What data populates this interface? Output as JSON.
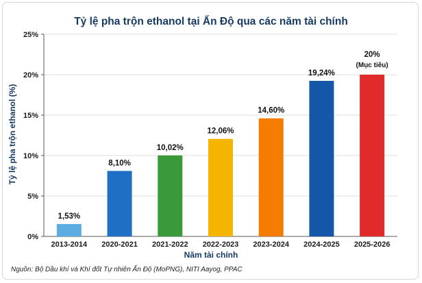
{
  "chart_data": {
    "type": "bar",
    "title": "Tỷ lệ pha trộn ethanol tại Ấn Độ qua các năm tài chính",
    "xlabel": "Năm tài chính",
    "ylabel": "Tỷ lệ pha trộn ethanol (%)",
    "categories": [
      "2013-2014",
      "2020-2021",
      "2021-2022",
      "2022-2023",
      "2023-2024",
      "2024-2025",
      "2025-2026"
    ],
    "values": [
      1.53,
      8.1,
      10.02,
      12.06,
      14.6,
      19.24,
      20
    ],
    "data_labels": [
      "1,53%",
      "8,10%",
      "10,02%",
      "12,06%",
      "14,60%",
      "19,24%",
      "20%"
    ],
    "data_notes": [
      "",
      "",
      "",
      "",
      "",
      "",
      "(Mục tiêu)"
    ],
    "colors": [
      "#5dade2",
      "#1f6fc5",
      "#3a9a3a",
      "#f4b400",
      "#f57c00",
      "#1456a8",
      "#e12b2b"
    ],
    "ylim": [
      0,
      25
    ],
    "yticks": [
      0,
      5,
      10,
      15,
      20,
      25
    ],
    "ytick_labels": [
      "0%",
      "5%",
      "10%",
      "15%",
      "20%",
      "25%"
    ],
    "grid": true,
    "legend": "none",
    "source": "Nguồn: Bộ Dầu khí và Khí đốt Tự nhiên Ấn Độ (MoPNG), NITI Aayog, PPAC"
  }
}
